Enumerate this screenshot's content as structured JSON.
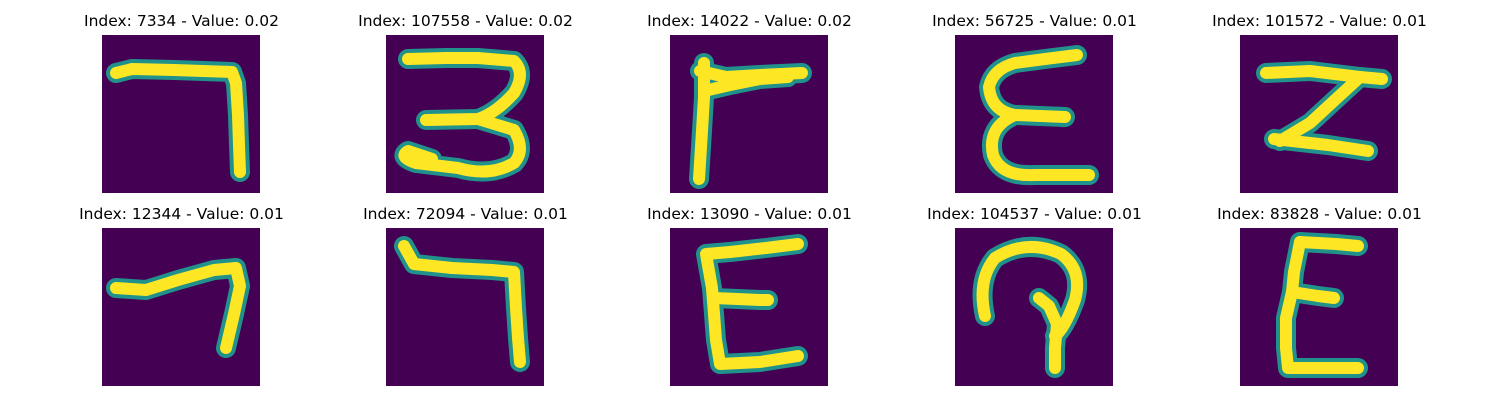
{
  "figure": {
    "cells": [
      {
        "index": "7334",
        "value": "0.02",
        "title": "Index: 7334 - Value: 0.02",
        "glyph": "hook-seven"
      },
      {
        "index": "107558",
        "value": "0.02",
        "title": "Index: 107558 - Value: 0.02",
        "glyph": "three-curl"
      },
      {
        "index": "14022",
        "value": "0.02",
        "title": "Index: 14022 - Value: 0.02",
        "glyph": "t-branch"
      },
      {
        "index": "56725",
        "value": "0.01",
        "title": "Index: 56725 - Value: 0.01",
        "glyph": "epsilon-round"
      },
      {
        "index": "101572",
        "value": "0.01",
        "title": "Index: 101572 - Value: 0.01",
        "glyph": "z-block"
      },
      {
        "index": "12344",
        "value": "0.01",
        "title": "Index: 12344 - Value: 0.01",
        "glyph": "thin-seven"
      },
      {
        "index": "72094",
        "value": "0.01",
        "title": "Index: 72094 - Value: 0.01",
        "glyph": "bold-seven"
      },
      {
        "index": "13090",
        "value": "0.01",
        "title": "Index: 13090 - Value: 0.01",
        "glyph": "e-square"
      },
      {
        "index": "104537",
        "value": "0.01",
        "title": "Index: 104537 - Value: 0.01",
        "glyph": "loop-p"
      },
      {
        "index": "83828",
        "value": "0.01",
        "title": "Index: 83828 - Value: 0.01",
        "glyph": "e-slanted"
      }
    ],
    "colors": {
      "background": "#440154",
      "stroke_core": "#fde725",
      "stroke_edge": "#21918c",
      "title_text": "#000000"
    }
  }
}
